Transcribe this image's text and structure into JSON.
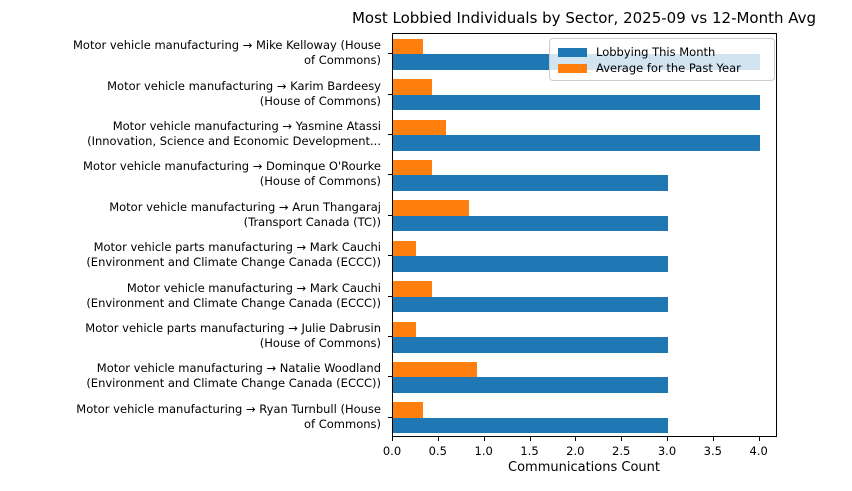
{
  "chart_data": {
    "type": "bar",
    "orientation": "horizontal",
    "title": "Most Lobbied Individuals by Sector, 2025-09 vs 12-Month Avg",
    "xlabel": "Communications Count",
    "ylabel": "",
    "xlim": [
      0,
      4.2
    ],
    "xtick_labels": [
      "0.0",
      "0.5",
      "1.0",
      "1.5",
      "2.0",
      "2.5",
      "3.0",
      "3.5",
      "4.0"
    ],
    "grid": false,
    "legend_position": "upper-right",
    "categories": [
      "Motor vehicle manufacturing → Mike Kelloway (House of Commons)",
      "Motor vehicle manufacturing → Karim Bardeesy (House of Commons)",
      "Motor vehicle manufacturing → Yasmine Atassi (Innovation, Science and Economic Development...",
      "Motor vehicle manufacturing → Dominque O'Rourke (House of Commons)",
      "Motor vehicle manufacturing → Arun Thangaraj (Transport Canada (TC))",
      "Motor vehicle parts manufacturing → Mark Cauchi (Environment and Climate Change Canada (ECCC))",
      "Motor vehicle manufacturing → Mark Cauchi (Environment and Climate Change Canada (ECCC))",
      "Motor vehicle parts manufacturing → Julie Dabrusin (House of Commons)",
      "Motor vehicle manufacturing → Natalie Woodland (Environment and Climate Change Canada (ECCC))",
      "Motor vehicle manufacturing → Ryan Turnbull (House of Commons)"
    ],
    "category_label_lines": [
      [
        "Motor vehicle manufacturing → Mike Kelloway (House",
        "of Commons)"
      ],
      [
        "Motor vehicle manufacturing → Karim Bardeesy",
        "(House of Commons)"
      ],
      [
        "Motor vehicle manufacturing → Yasmine Atassi",
        "(Innovation, Science and Economic Development..."
      ],
      [
        "Motor vehicle manufacturing → Dominque O'Rourke",
        "(House of Commons)"
      ],
      [
        "Motor vehicle manufacturing → Arun Thangaraj",
        "(Transport Canada (TC))"
      ],
      [
        "Motor vehicle parts manufacturing → Mark Cauchi",
        "(Environment and Climate Change Canada (ECCC))"
      ],
      [
        "Motor vehicle manufacturing → Mark Cauchi",
        "(Environment and Climate Change Canada (ECCC))"
      ],
      [
        "Motor vehicle parts manufacturing → Julie Dabrusin",
        "(House of Commons)"
      ],
      [
        "Motor vehicle manufacturing → Natalie Woodland",
        "(Environment and Climate Change Canada (ECCC))"
      ],
      [
        "Motor vehicle manufacturing → Ryan Turnbull (House",
        "of Commons)"
      ]
    ],
    "series": [
      {
        "name": "Lobbying This Month",
        "color": "#1f77b4",
        "values": [
          4.0,
          4.0,
          4.0,
          3.0,
          3.0,
          3.0,
          3.0,
          3.0,
          3.0,
          3.0
        ]
      },
      {
        "name": "Average for the Past Year",
        "color": "#ff7f0e",
        "values": [
          0.33,
          0.42,
          0.58,
          0.42,
          0.83,
          0.25,
          0.42,
          0.25,
          0.92,
          0.33
        ]
      }
    ]
  },
  "colors": {
    "this_month": "#1f77b4",
    "past_year": "#ff7f0e",
    "axis": "#000000",
    "legend_border": "#cccccc",
    "background": "#ffffff"
  }
}
